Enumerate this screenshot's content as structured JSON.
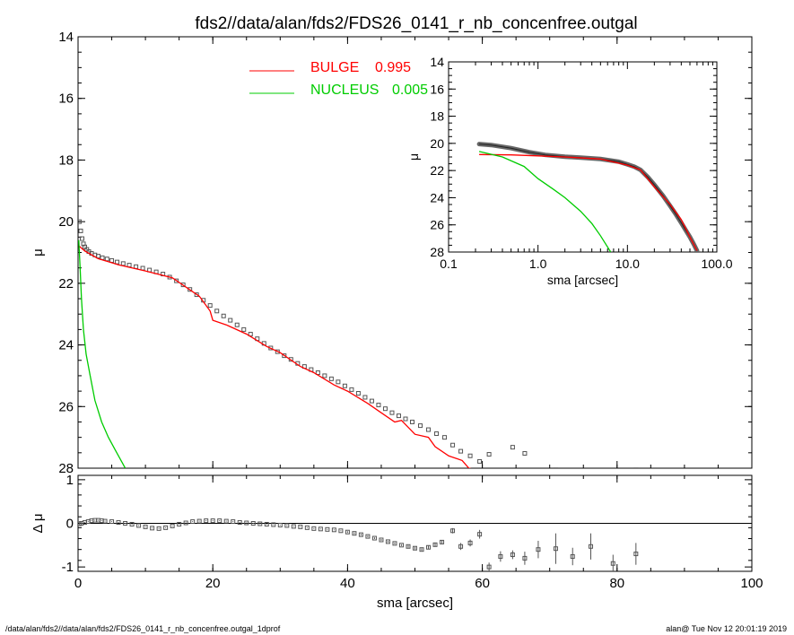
{
  "title": "fds2//data/alan/fds2/FDS26_0141_r_nb_concenfree.outgal",
  "footer_left": "/data/alan/fds2//data/alan/fds2/FDS26_0141_r_nb_concenfree.outgal_1dprof",
  "footer_right": "alan@  Tue Nov 12 20:01:19 2019",
  "colors": {
    "bulge": "#ff0000",
    "nucleus": "#00cc00",
    "data": "#555555",
    "zero_line": "#000000"
  },
  "chart_data": [
    {
      "type": "line",
      "panel": "main",
      "xlabel": "",
      "ylabel": "μ",
      "xlim": [
        0,
        100
      ],
      "ylim": [
        28,
        14
      ],
      "x_ticks": [
        0,
        20,
        40,
        60,
        80,
        100
      ],
      "y_ticks": [
        14,
        16,
        18,
        20,
        22,
        24,
        26,
        28
      ],
      "x_tick_labels": [
        "",
        "",
        "",
        "",
        "",
        ""
      ],
      "y_tick_labels": [
        "14",
        "16",
        "18",
        "20",
        "22",
        "24",
        "26",
        "28"
      ],
      "legend": [
        {
          "name": "BULGE",
          "value": "0.995",
          "color": "#ff0000"
        },
        {
          "name": "NUCLEUS",
          "value": "0.005",
          "color": "#00cc00"
        }
      ],
      "legend_position": "top-center",
      "series": [
        {
          "name": "data",
          "style": "squares",
          "x": [
            0.2,
            0.4,
            0.6,
            0.8,
            1.0,
            1.3,
            1.6,
            2.0,
            2.5,
            3.0,
            3.6,
            4.3,
            5.0,
            5.8,
            6.7,
            7.6,
            8.6,
            9.6,
            10.6,
            11.6,
            12.6,
            13.6,
            14.6,
            15.6,
            16.6,
            17.6,
            18.6,
            19.6,
            20.6,
            21.6,
            22.6,
            23.6,
            24.6,
            25.6,
            26.6,
            27.6,
            28.6,
            29.6,
            30.6,
            31.6,
            32.6,
            33.6,
            34.6,
            35.6,
            36.6,
            37.6,
            38.6,
            39.6,
            40.6,
            41.6,
            42.6,
            43.6,
            44.6,
            45.6,
            46.6,
            47.6,
            48.6,
            49.6,
            50.8,
            52.0,
            53.2,
            54.4,
            55.6,
            56.8,
            58.2,
            59.6,
            61.0,
            62.7,
            64.5,
            66.3,
            68.3,
            70.9,
            73.4,
            76.1,
            79.4,
            82.8
          ],
          "y": [
            20.0,
            20.3,
            20.55,
            20.72,
            20.82,
            20.9,
            20.97,
            21.03,
            21.08,
            21.12,
            21.17,
            21.21,
            21.26,
            21.31,
            21.36,
            21.41,
            21.46,
            21.51,
            21.57,
            21.63,
            21.7,
            21.8,
            21.92,
            22.05,
            22.2,
            22.37,
            22.55,
            22.72,
            22.9,
            23.06,
            23.2,
            23.35,
            23.5,
            23.65,
            23.8,
            23.95,
            24.1,
            24.22,
            24.35,
            24.47,
            24.6,
            24.7,
            24.8,
            24.9,
            25.0,
            25.1,
            25.2,
            25.33,
            25.45,
            25.57,
            25.7,
            25.82,
            25.95,
            26.07,
            26.2,
            26.3,
            26.4,
            26.5,
            26.62,
            26.75,
            26.88,
            27.0,
            27.25,
            27.45,
            27.6,
            27.78,
            27.55,
            28.3,
            27.32,
            27.52,
            28.1,
            28.05,
            28.3,
            28.15,
            28.9,
            28.05
          ]
        },
        {
          "name": "BULGE",
          "style": "line",
          "color": "#ff0000",
          "x": [
            0.2,
            1,
            3,
            6,
            10,
            14,
            18,
            19.6,
            20,
            22,
            25,
            28,
            30,
            33,
            35,
            38,
            40,
            43,
            45,
            47,
            48,
            50,
            52,
            53,
            55,
            57,
            58,
            60
          ],
          "y": [
            20.8,
            20.95,
            21.2,
            21.4,
            21.6,
            21.82,
            22.42,
            22.9,
            23.2,
            23.35,
            23.65,
            24.05,
            24.25,
            24.7,
            24.9,
            25.3,
            25.5,
            25.9,
            26.2,
            26.5,
            26.45,
            26.9,
            27.0,
            27.3,
            27.6,
            27.75,
            28.0,
            28.1
          ]
        },
        {
          "name": "NUCLEUS",
          "style": "line",
          "color": "#00cc00",
          "x": [
            0.1,
            0.3,
            0.5,
            0.8,
            1.2,
            1.8,
            2.5,
            3.5,
            4.5,
            5.5,
            6.5,
            7.0
          ],
          "y": [
            20.6,
            21.5,
            22.5,
            23.5,
            24.3,
            25.0,
            25.8,
            26.5,
            27.0,
            27.4,
            27.8,
            28.0
          ]
        }
      ]
    },
    {
      "type": "line",
      "panel": "inset",
      "xscale": "log",
      "xlabel": "sma [arcsec]",
      "ylabel": "μ",
      "xlim": [
        0.1,
        100
      ],
      "ylim": [
        28,
        14
      ],
      "x_ticks": [
        0.1,
        1.0,
        10.0,
        100.0
      ],
      "x_tick_labels": [
        "0.1",
        "1.0",
        "10.0",
        "100.0"
      ],
      "y_ticks": [
        14,
        16,
        18,
        20,
        22,
        24,
        26,
        28
      ],
      "y_tick_labels": [
        "14",
        "16",
        "18",
        "20",
        "22",
        "24",
        "26",
        "28"
      ],
      "series": [
        {
          "name": "data",
          "style": "thick-band",
          "x": [
            0.22,
            0.3,
            0.5,
            0.8,
            1.2,
            2,
            3,
            5,
            8,
            10,
            12,
            14,
            17,
            20,
            25,
            30,
            35,
            40,
            45,
            50,
            55,
            60
          ],
          "y": [
            20.05,
            20.12,
            20.35,
            20.65,
            20.85,
            20.98,
            21.05,
            21.15,
            21.35,
            21.55,
            21.72,
            21.95,
            22.5,
            23.05,
            23.85,
            24.6,
            25.25,
            25.85,
            26.4,
            26.9,
            27.4,
            27.9
          ]
        },
        {
          "name": "BULGE",
          "style": "line",
          "color": "#ff0000",
          "x": [
            0.22,
            0.5,
            1,
            2,
            5,
            10,
            14,
            20,
            30,
            40,
            50,
            60
          ],
          "y": [
            20.82,
            20.85,
            20.92,
            21.0,
            21.15,
            21.6,
            21.95,
            23.2,
            24.5,
            25.6,
            26.9,
            27.9
          ]
        },
        {
          "name": "NUCLEUS",
          "style": "line",
          "color": "#00cc00",
          "x": [
            0.22,
            0.4,
            0.7,
            1,
            1.5,
            2,
            3,
            4,
            5,
            6.5
          ],
          "y": [
            20.6,
            21.0,
            21.7,
            22.6,
            23.4,
            24.0,
            25.0,
            25.9,
            26.8,
            28.0
          ]
        }
      ]
    },
    {
      "type": "scatter",
      "panel": "residual",
      "xlabel": "sma [arcsec]",
      "ylabel": "Δ μ",
      "xlim": [
        0,
        100
      ],
      "ylim": [
        -1.1,
        1.1
      ],
      "x_ticks": [
        0,
        20,
        40,
        60,
        80,
        100
      ],
      "x_tick_labels": [
        "0",
        "20",
        "40",
        "60",
        "80",
        "100"
      ],
      "y_ticks": [
        1,
        0,
        -1
      ],
      "y_tick_labels": [
        "1",
        "0",
        "-1"
      ],
      "series": [
        {
          "name": "residual",
          "style": "squares-errorbars",
          "x": [
            0.2,
            0.5,
            1,
            1.5,
            2,
            2.5,
            3,
            3.5,
            4,
            5,
            6,
            7,
            8,
            9,
            10,
            11,
            12,
            13,
            14,
            15,
            16,
            17,
            18,
            19,
            20,
            21,
            22,
            23,
            24,
            25,
            26,
            27,
            28,
            29,
            30,
            31,
            32,
            33,
            34,
            35,
            36,
            37,
            38,
            39,
            40,
            41,
            42,
            43,
            44,
            45,
            46,
            47,
            48,
            49,
            50,
            51,
            52,
            53,
            54,
            55.6,
            56.8,
            58.2,
            59.6,
            61.0,
            62.7,
            64.5,
            66.3,
            68.3,
            70.9,
            73.4,
            76.1,
            79.4,
            82.8
          ],
          "y": [
            -0.01,
            0.0,
            0.02,
            0.04,
            0.06,
            0.07,
            0.07,
            0.06,
            0.05,
            0.04,
            0.02,
            0.0,
            -0.02,
            -0.05,
            -0.08,
            -0.11,
            -0.12,
            -0.1,
            -0.06,
            -0.02,
            0.01,
            0.04,
            0.05,
            0.06,
            0.06,
            0.06,
            0.05,
            0.04,
            0.02,
            0.01,
            0.0,
            -0.01,
            -0.02,
            -0.03,
            -0.04,
            -0.05,
            -0.07,
            -0.08,
            -0.1,
            -0.12,
            -0.13,
            -0.14,
            -0.15,
            -0.17,
            -0.2,
            -0.23,
            -0.26,
            -0.3,
            -0.34,
            -0.38,
            -0.42,
            -0.46,
            -0.5,
            -0.53,
            -0.57,
            -0.6,
            -0.55,
            -0.49,
            -0.43,
            -0.17,
            -0.53,
            -0.45,
            -0.25,
            -1.0,
            -0.76,
            -0.72,
            -0.8,
            -0.6,
            -0.58,
            -0.76,
            -0.53,
            -0.92,
            -0.7
          ],
          "err": [
            0.01,
            0.01,
            0.01,
            0.01,
            0.01,
            0.01,
            0.01,
            0.01,
            0.01,
            0.01,
            0.01,
            0.01,
            0.01,
            0.01,
            0.01,
            0.01,
            0.01,
            0.01,
            0.01,
            0.01,
            0.01,
            0.01,
            0.01,
            0.01,
            0.01,
            0.01,
            0.01,
            0.01,
            0.01,
            0.01,
            0.01,
            0.01,
            0.01,
            0.01,
            0.01,
            0.01,
            0.01,
            0.01,
            0.01,
            0.01,
            0.01,
            0.01,
            0.01,
            0.01,
            0.02,
            0.02,
            0.02,
            0.02,
            0.02,
            0.02,
            0.02,
            0.02,
            0.02,
            0.03,
            0.03,
            0.03,
            0.04,
            0.04,
            0.05,
            0.06,
            0.08,
            0.08,
            0.1,
            0.1,
            0.12,
            0.1,
            0.15,
            0.2,
            0.35,
            0.2,
            0.3,
            0.2,
            0.25
          ]
        }
      ]
    }
  ]
}
